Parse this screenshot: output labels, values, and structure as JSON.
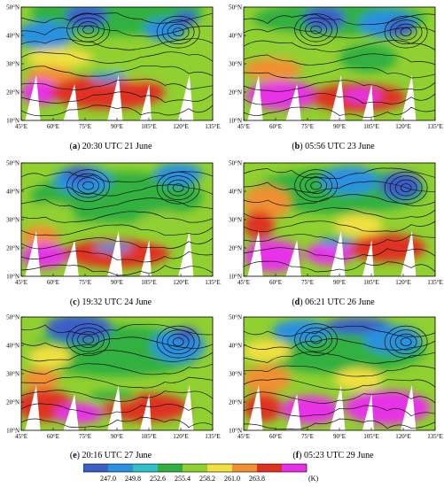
{
  "panels": [
    {
      "id": "a",
      "caption_time": "20:30 UTC 21 June"
    },
    {
      "id": "b",
      "caption_time": "05:56 UTC 23 June"
    },
    {
      "id": "c",
      "caption_time": "19:32 UTC 24 June"
    },
    {
      "id": "d",
      "caption_time": "06:21 UTC 26 June"
    },
    {
      "id": "e",
      "caption_time": "20:16 UTC 27 June"
    },
    {
      "id": "f",
      "caption_time": "05:23 UTC 29 June"
    }
  ],
  "lat_labels": [
    "50°N",
    "40°N",
    "30°N",
    "20°N",
    "10°N"
  ],
  "lon_labels": [
    "45°E",
    "60°E",
    "75°E",
    "90°E",
    "105°E",
    "120°E",
    "135°E"
  ],
  "colorbar": {
    "ticks": [
      "247.0",
      "249.8",
      "252.6",
      "255.4",
      "258.2",
      "261.0",
      "263.8"
    ],
    "unit": "(K)",
    "colors": [
      "#3a5fc9",
      "#2a90e0",
      "#30c0c8",
      "#30b040",
      "#90d030",
      "#f0e040",
      "#f09030",
      "#e03020",
      "#e830e8"
    ]
  }
}
